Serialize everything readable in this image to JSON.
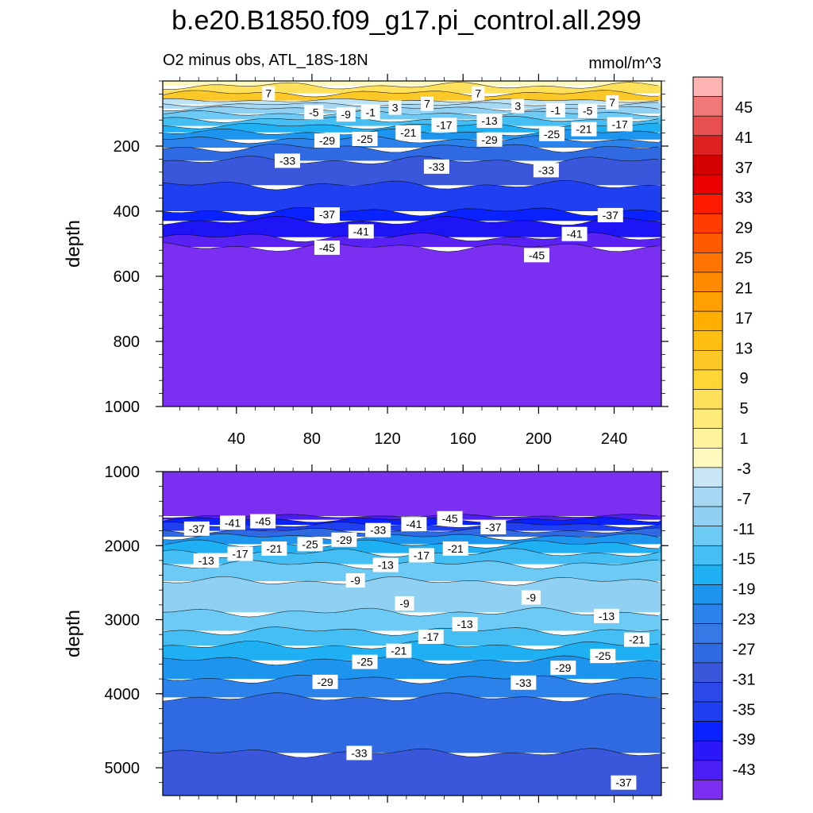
{
  "title": "b.e20.B1850.f09_g17.pi_control.all.299",
  "chart_data": {
    "type": "contour",
    "subtitle_left": "O2 minus obs, ATL_18S-18N",
    "subtitle_right": "mmol/m^3",
    "xticks": [
      40,
      80,
      120,
      160,
      200,
      240
    ],
    "xlim": [
      1,
      265
    ],
    "panels": [
      {
        "name": "upper",
        "ylabel": "depth",
        "ylim": [
          0,
          1000
        ],
        "yticks": [
          200,
          400,
          600,
          800,
          1000
        ],
        "bands": [
          {
            "top": 0,
            "bottom": 15,
            "color": "#fff9be"
          },
          {
            "top": 15,
            "bottom": 38,
            "color": "#ffe05a"
          },
          {
            "top": 38,
            "bottom": 60,
            "color": "#fcc827"
          },
          {
            "top": 60,
            "bottom": 72,
            "color": "#bfe3f6"
          },
          {
            "top": 72,
            "bottom": 85,
            "color": "#a6d8f3"
          },
          {
            "top": 85,
            "bottom": 100,
            "color": "#8fd0f3"
          },
          {
            "top": 100,
            "bottom": 118,
            "color": "#6ccaf4"
          },
          {
            "top": 118,
            "bottom": 138,
            "color": "#45bef3"
          },
          {
            "top": 138,
            "bottom": 158,
            "color": "#1eb0f3"
          },
          {
            "top": 158,
            "bottom": 180,
            "color": "#1d95ee"
          },
          {
            "top": 180,
            "bottom": 205,
            "color": "#2a82ea"
          },
          {
            "top": 205,
            "bottom": 245,
            "color": "#2f6ae2"
          },
          {
            "top": 245,
            "bottom": 320,
            "color": "#3a57dc"
          },
          {
            "top": 320,
            "bottom": 400,
            "color": "#1f3ff0"
          },
          {
            "top": 400,
            "bottom": 430,
            "color": "#0a22ff"
          },
          {
            "top": 430,
            "bottom": 480,
            "color": "#1d15f5"
          },
          {
            "top": 480,
            "bottom": 510,
            "color": "#5a22f2"
          },
          {
            "top": 510,
            "bottom": 1000,
            "color": "#7b2ff0"
          }
        ],
        "contour_labels": [
          {
            "text": "7",
            "x": 57,
            "y": 38
          },
          {
            "text": "7",
            "x": 141,
            "y": 70
          },
          {
            "text": "7",
            "x": 168,
            "y": 38
          },
          {
            "text": "7",
            "x": 239,
            "y": 66
          },
          {
            "text": "3",
            "x": 124,
            "y": 82
          },
          {
            "text": "3",
            "x": 189,
            "y": 77
          },
          {
            "text": "-1",
            "x": 111,
            "y": 96
          },
          {
            "text": "-1",
            "x": 209,
            "y": 90
          },
          {
            "text": "-5",
            "x": 81,
            "y": 96
          },
          {
            "text": "-5",
            "x": 226,
            "y": 92
          },
          {
            "text": "-9",
            "x": 98,
            "y": 103
          },
          {
            "text": "-13",
            "x": 174,
            "y": 122
          },
          {
            "text": "-17",
            "x": 150,
            "y": 135
          },
          {
            "text": "-17",
            "x": 243,
            "y": 133
          },
          {
            "text": "-21",
            "x": 131,
            "y": 158
          },
          {
            "text": "-21",
            "x": 224,
            "y": 148
          },
          {
            "text": "-25",
            "x": 108,
            "y": 178
          },
          {
            "text": "-25",
            "x": 207,
            "y": 163
          },
          {
            "text": "-29",
            "x": 88,
            "y": 183
          },
          {
            "text": "-29",
            "x": 174,
            "y": 180
          },
          {
            "text": "-33",
            "x": 67,
            "y": 245
          },
          {
            "text": "-33",
            "x": 146,
            "y": 263
          },
          {
            "text": "-33",
            "x": 204,
            "y": 274
          },
          {
            "text": "-37",
            "x": 88,
            "y": 410
          },
          {
            "text": "-37",
            "x": 238,
            "y": 412
          },
          {
            "text": "-41",
            "x": 106,
            "y": 462
          },
          {
            "text": "-41",
            "x": 219,
            "y": 470
          },
          {
            "text": "-45",
            "x": 88,
            "y": 512
          },
          {
            "text": "-45",
            "x": 199,
            "y": 535
          }
        ]
      },
      {
        "name": "lower",
        "ylabel": "depth",
        "ylim": [
          1000,
          5375
        ],
        "yticks": [
          1000,
          2000,
          3000,
          4000,
          5000
        ],
        "bands": [
          {
            "top": 1000,
            "bottom": 1600,
            "color": "#7b2ff0"
          },
          {
            "top": 1600,
            "bottom": 1650,
            "color": "#4a1ef5"
          },
          {
            "top": 1650,
            "bottom": 1720,
            "color": "#0a22ff"
          },
          {
            "top": 1720,
            "bottom": 1800,
            "color": "#1f3ff0"
          },
          {
            "top": 1800,
            "bottom": 1880,
            "color": "#2f6ae2"
          },
          {
            "top": 1880,
            "bottom": 1980,
            "color": "#1d95ee"
          },
          {
            "top": 1980,
            "bottom": 2100,
            "color": "#1eb0f3"
          },
          {
            "top": 2100,
            "bottom": 2250,
            "color": "#45bef3"
          },
          {
            "top": 2250,
            "bottom": 2480,
            "color": "#6ccaf4"
          },
          {
            "top": 2480,
            "bottom": 2900,
            "color": "#8fd0f3"
          },
          {
            "top": 2900,
            "bottom": 3150,
            "color": "#6ccaf4"
          },
          {
            "top": 3150,
            "bottom": 3350,
            "color": "#45bef3"
          },
          {
            "top": 3350,
            "bottom": 3550,
            "color": "#1eb0f3"
          },
          {
            "top": 3550,
            "bottom": 3800,
            "color": "#1d95ee"
          },
          {
            "top": 3800,
            "bottom": 4050,
            "color": "#2a82ea"
          },
          {
            "top": 4050,
            "bottom": 4800,
            "color": "#2f6ae2"
          },
          {
            "top": 4800,
            "bottom": 5375,
            "color": "#3a57dc"
          }
        ],
        "contour_labels": [
          {
            "text": "-37",
            "x": 19,
            "y": 1770
          },
          {
            "text": "-41",
            "x": 38,
            "y": 1690
          },
          {
            "text": "-45",
            "x": 54,
            "y": 1670
          },
          {
            "text": "-41",
            "x": 134,
            "y": 1710
          },
          {
            "text": "-45",
            "x": 153,
            "y": 1630
          },
          {
            "text": "-37",
            "x": 176,
            "y": 1750
          },
          {
            "text": "-33",
            "x": 115,
            "y": 1790
          },
          {
            "text": "-29",
            "x": 97,
            "y": 1920
          },
          {
            "text": "-25",
            "x": 79,
            "y": 1980
          },
          {
            "text": "-21",
            "x": 60,
            "y": 2040
          },
          {
            "text": "-17",
            "x": 42,
            "y": 2110
          },
          {
            "text": "-13",
            "x": 24,
            "y": 2200
          },
          {
            "text": "-13",
            "x": 119,
            "y": 2260
          },
          {
            "text": "-17",
            "x": 138,
            "y": 2130
          },
          {
            "text": "-21",
            "x": 156,
            "y": 2040
          },
          {
            "text": "-9",
            "x": 103,
            "y": 2470
          },
          {
            "text": "-9",
            "x": 129,
            "y": 2780
          },
          {
            "text": "-9",
            "x": 196,
            "y": 2700
          },
          {
            "text": "-13",
            "x": 161,
            "y": 3060
          },
          {
            "text": "-13",
            "x": 236,
            "y": 2950
          },
          {
            "text": "-17",
            "x": 143,
            "y": 3230
          },
          {
            "text": "-21",
            "x": 126,
            "y": 3420
          },
          {
            "text": "-25",
            "x": 108,
            "y": 3570
          },
          {
            "text": "-29",
            "x": 87,
            "y": 3840
          },
          {
            "text": "-29",
            "x": 213,
            "y": 3650
          },
          {
            "text": "-25",
            "x": 234,
            "y": 3490
          },
          {
            "text": "-21",
            "x": 252,
            "y": 3270
          },
          {
            "text": "-33",
            "x": 192,
            "y": 3850
          },
          {
            "text": "-33",
            "x": 105,
            "y": 4800
          },
          {
            "text": "-37",
            "x": 245,
            "y": 5200
          }
        ]
      }
    ],
    "colorbar": {
      "levels_labeled": [
        "45",
        "41",
        "37",
        "33",
        "29",
        "25",
        "21",
        "17",
        "13",
        "9",
        "5",
        "1",
        "-3",
        "-7",
        "-11",
        "-15",
        "-19",
        "-23",
        "-27",
        "-31",
        "-35",
        "-39",
        "-43"
      ],
      "colors": [
        "#ffb3b3",
        "#f07878",
        "#e85050",
        "#dd2020",
        "#d40000",
        "#ea0000",
        "#ff1a00",
        "#ff3d00",
        "#ff5a00",
        "#ff7300",
        "#ff8a00",
        "#ffa000",
        "#ffaf00",
        "#ffbf10",
        "#fcc827",
        "#ffd633",
        "#ffe05a",
        "#ffeb7a",
        "#fff39e",
        "#fff9be",
        "#c8e6f6",
        "#a6d8f3",
        "#8fd0f3",
        "#6ccaf4",
        "#45bef3",
        "#1eb0f3",
        "#1d95ee",
        "#2a82ea",
        "#3678e6",
        "#2f6ae2",
        "#3a57dc",
        "#2b48e8",
        "#1f3ff0",
        "#0a22ff",
        "#2a18f8",
        "#4a1ef5",
        "#7b2ff0"
      ]
    }
  }
}
